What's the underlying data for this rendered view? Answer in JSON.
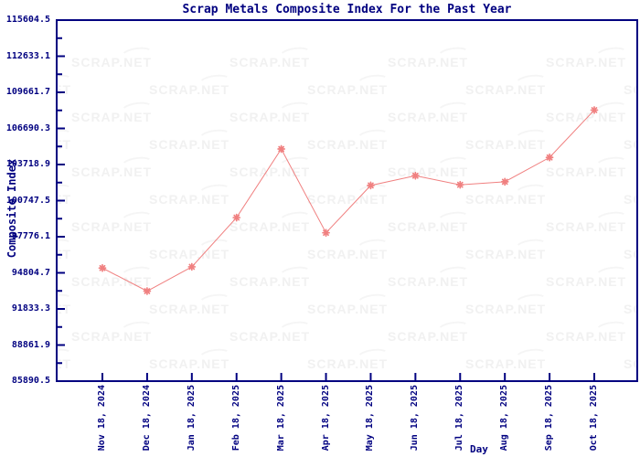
{
  "watermark": {
    "text": "SCRAP.NET",
    "color": "#f1f1f1"
  },
  "colors": {
    "axis": "#000080",
    "text": "#000080",
    "line": "#f08080",
    "marker": "#f08080",
    "background": "#ffffff",
    "watermark": "#f1f1f1"
  },
  "chart_data": {
    "type": "line",
    "title": "Scrap Metals Composite Index For the Past Year",
    "xlabel": "Day",
    "ylabel": "Composite Index",
    "categories": [
      "Nov 18, 2024",
      "Dec 18, 2024",
      "Jan 18, 2025",
      "Feb 18, 2025",
      "Mar 18, 2025",
      "Apr 18, 2025",
      "May 18, 2025",
      "Jun 18, 2025",
      "Jul 18, 2025",
      "Aug 18, 2025",
      "Sep 18, 2025",
      "Oct 18, 2025"
    ],
    "values": [
      95200,
      93300,
      95300,
      99350,
      105000,
      98100,
      102000,
      102800,
      102050,
      102300,
      104300,
      108200
    ],
    "series_name": "Composite Index",
    "ylim": [
      85890.5,
      115604.5
    ],
    "ytick_step": 2971.4,
    "ytick_labels": [
      "115604.5",
      "112633.1",
      "109661.7",
      "106690.3",
      "103718.9",
      "100747.5",
      "97776.1",
      "94804.7",
      "91833.3",
      "88861.9",
      "85890.5"
    ],
    "grid": false,
    "legend": null,
    "marker": "star",
    "line_color": "#f08080"
  }
}
